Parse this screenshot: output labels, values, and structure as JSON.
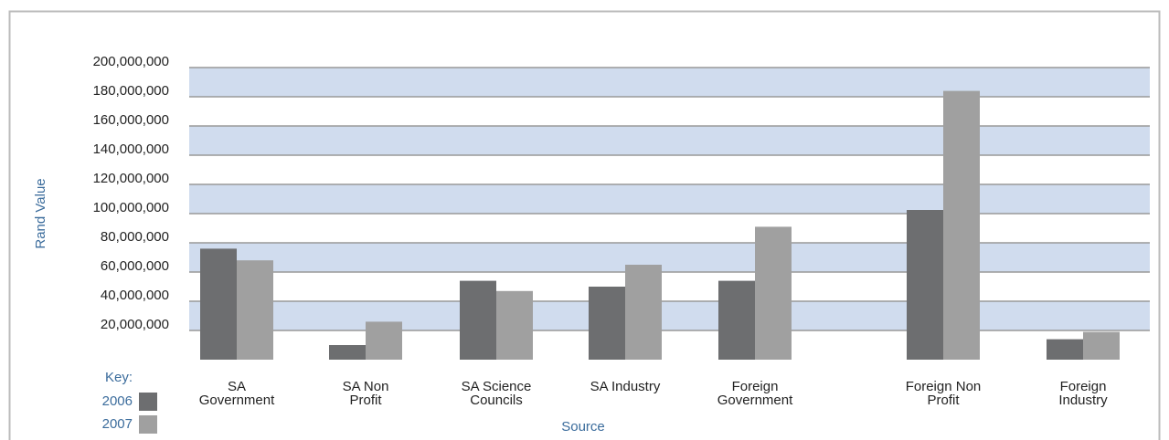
{
  "chart_data": {
    "type": "bar",
    "x_label": "Source",
    "y_label": "Rand Value",
    "legend_title": "Key:",
    "categories": [
      "SA\nGovernment",
      "SA Non\nProfit",
      "SA Science\nCouncils",
      "SA Industry",
      "Foreign\nGovernment",
      "Foreign Non\nProfit",
      "Foreign\nIndustry"
    ],
    "series": [
      {
        "name": "2006",
        "color": "#6d6e70",
        "values": [
          76000000,
          10000000,
          54000000,
          50000000,
          54000000,
          102500000,
          14000000
        ]
      },
      {
        "name": "2007",
        "color": "#a0a0a0",
        "values": [
          68000000,
          26000000,
          47000000,
          65000000,
          91000000,
          184000000,
          19000000
        ]
      }
    ],
    "ylim": [
      0,
      200000000
    ],
    "yticks": [
      {
        "value": 20000000,
        "label": "20,000,000"
      },
      {
        "value": 40000000,
        "label": "40,000,000"
      },
      {
        "value": 60000000,
        "label": "60,000,000"
      },
      {
        "value": 80000000,
        "label": "80,000,000"
      },
      {
        "value": 100000000,
        "label": "100,000,000"
      },
      {
        "value": 120000000,
        "label": "120,000,000"
      },
      {
        "value": 140000000,
        "label": "140,000,000"
      },
      {
        "value": 160000000,
        "label": "160,000,000"
      },
      {
        "value": 180000000,
        "label": "180,000,000"
      },
      {
        "value": 200000000,
        "label": "200,000,000"
      }
    ],
    "band_color": "#d0dcee",
    "grid": true
  }
}
